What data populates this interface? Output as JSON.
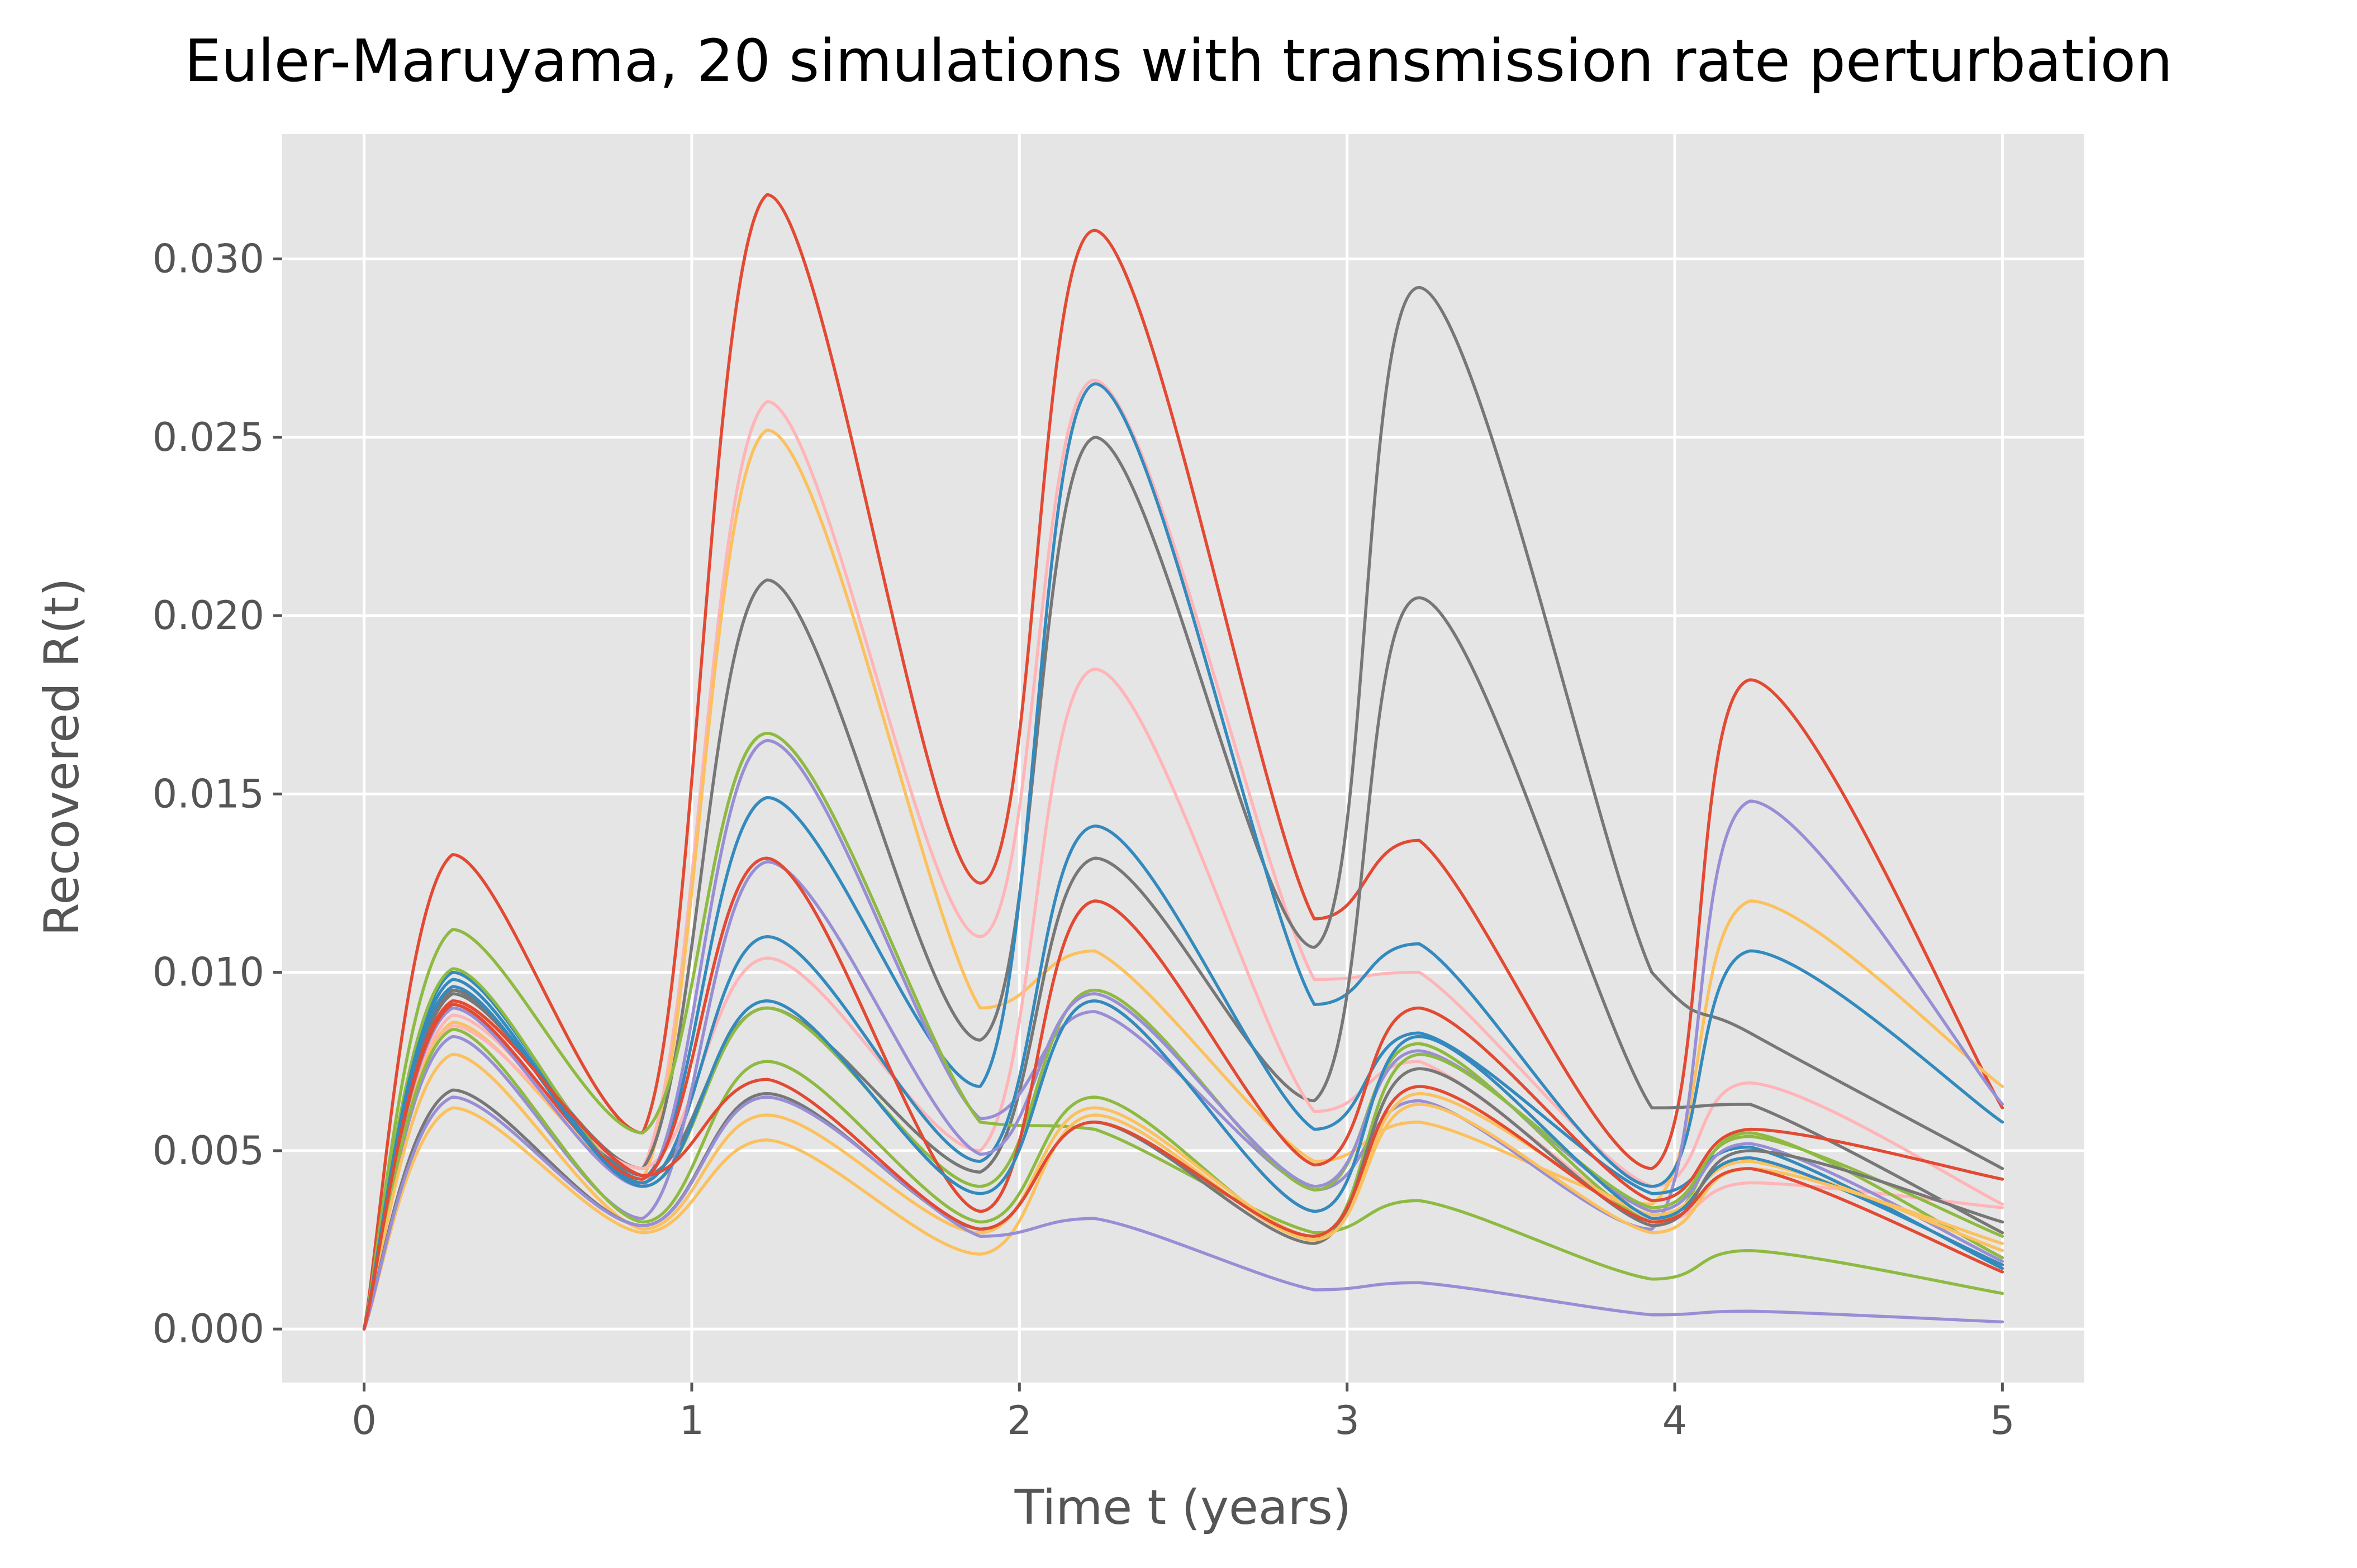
{
  "chart_data": {
    "type": "line",
    "title": "Euler-Maruyama, 20 simulations with transmission rate perturbation",
    "xlabel": "Time t (years)",
    "ylabel": "Recovered R(t)",
    "xlim": [
      -0.25,
      5.25
    ],
    "ylim": [
      -0.0015,
      0.0335
    ],
    "x_ticks": [
      0,
      1,
      2,
      3,
      4,
      5
    ],
    "x_tick_labels": [
      "0",
      "1",
      "2",
      "3",
      "4",
      "5"
    ],
    "y_ticks": [
      0.0,
      0.005,
      0.01,
      0.015,
      0.02,
      0.025,
      0.03
    ],
    "y_tick_labels": [
      "0.000",
      "0.005",
      "0.010",
      "0.015",
      "0.020",
      "0.025",
      "0.030"
    ],
    "grid": true,
    "legend": "none",
    "x_key_times": [
      0,
      0.27,
      0.85,
      1.23,
      1.88,
      2.23,
      2.9,
      3.22,
      3.93,
      4.23,
      5.0
    ],
    "series": [
      {
        "color": "#E24A33",
        "values": [
          0,
          0.0133,
          0.0055,
          0.0318,
          0.0125,
          0.0308,
          0.0115,
          0.0137,
          0.0045,
          0.0182,
          0.0062
        ]
      },
      {
        "color": "#FFB5B8",
        "values": [
          0,
          0.0088,
          0.0045,
          0.026,
          0.011,
          0.0266,
          0.0098,
          0.01,
          0.004,
          0.0069,
          0.0035
        ]
      },
      {
        "color": "#FBC15E",
        "values": [
          0,
          0.0086,
          0.0042,
          0.0252,
          0.009,
          0.0106,
          0.0047,
          0.0058,
          0.0035,
          0.012,
          0.0068
        ]
      },
      {
        "color": "#777777",
        "values": [
          0,
          0.0094,
          0.0045,
          0.021,
          0.0081,
          0.025,
          0.0107,
          0.0292,
          0.01,
          0.0083,
          0.0045
        ]
      },
      {
        "color": "#348ABD",
        "values": [
          0,
          0.01,
          0.0042,
          0.0149,
          0.0068,
          0.0265,
          0.0091,
          0.0108,
          0.004,
          0.0106,
          0.0058
        ]
      },
      {
        "color": "#777777",
        "values": [
          0,
          0.0095,
          0.0043,
          0.009,
          0.0044,
          0.0132,
          0.0064,
          0.0205,
          0.0062,
          0.0063,
          0.0027
        ]
      },
      {
        "color": "#FFB5B8",
        "values": [
          0,
          0.0085,
          0.0045,
          0.0104,
          0.005,
          0.0185,
          0.0061,
          0.0075,
          0.003,
          0.0041,
          0.0034
        ]
      },
      {
        "color": "#988ED5",
        "values": [
          0,
          0.009,
          0.004,
          0.0165,
          0.0059,
          0.0089,
          0.0039,
          0.0064,
          0.0028,
          0.0148,
          0.0063
        ]
      },
      {
        "color": "#8EBA42",
        "values": [
          0,
          0.0112,
          0.0055,
          0.0167,
          0.0058,
          0.0056,
          0.0027,
          0.0036,
          0.0014,
          0.0022,
          0.001
        ]
      },
      {
        "color": "#8EBA42",
        "values": [
          0,
          0.0101,
          0.004,
          0.009,
          0.004,
          0.0095,
          0.0039,
          0.008,
          0.003,
          0.0055,
          0.002
        ]
      },
      {
        "color": "#348ABD",
        "values": [
          0,
          0.0098,
          0.0041,
          0.011,
          0.0047,
          0.0141,
          0.0056,
          0.0083,
          0.0038,
          0.0051,
          0.0017
        ]
      },
      {
        "color": "#988ED5",
        "values": [
          0,
          0.0082,
          0.0031,
          0.0131,
          0.0049,
          0.0094,
          0.004,
          0.0078,
          0.0033,
          0.0052,
          0.0019
        ]
      },
      {
        "color": "#E24A33",
        "values": [
          0,
          0.0091,
          0.0042,
          0.0132,
          0.0033,
          0.012,
          0.0046,
          0.009,
          0.0036,
          0.0056,
          0.0042
        ]
      },
      {
        "color": "#8EBA42",
        "values": [
          0,
          0.0084,
          0.003,
          0.0075,
          0.003,
          0.0065,
          0.0025,
          0.0077,
          0.0034,
          0.0054,
          0.0026
        ]
      },
      {
        "color": "#FBC15E",
        "values": [
          0,
          0.0077,
          0.0028,
          0.006,
          0.0027,
          0.0062,
          0.0026,
          0.0066,
          0.0032,
          0.0047,
          0.0022
        ]
      },
      {
        "color": "#348ABD",
        "values": [
          0,
          0.0096,
          0.004,
          0.0092,
          0.0038,
          0.0092,
          0.0033,
          0.0082,
          0.0031,
          0.0048,
          0.0018
        ]
      },
      {
        "color": "#777777",
        "values": [
          0,
          0.0067,
          0.0029,
          0.0066,
          0.0028,
          0.0058,
          0.0024,
          0.0073,
          0.0029,
          0.005,
          0.003
        ]
      },
      {
        "color": "#FBC15E",
        "values": [
          0,
          0.0062,
          0.0027,
          0.0053,
          0.0021,
          0.006,
          0.0025,
          0.0063,
          0.0027,
          0.0045,
          0.0024
        ]
      },
      {
        "color": "#988ED5",
        "values": [
          0,
          0.0065,
          0.0029,
          0.0065,
          0.0026,
          0.0031,
          0.0011,
          0.0013,
          0.0004,
          0.0005,
          0.0002
        ]
      },
      {
        "color": "#E24A33",
        "values": [
          0,
          0.0092,
          0.0043,
          0.007,
          0.0028,
          0.0058,
          0.0026,
          0.0068,
          0.003,
          0.0045,
          0.0016
        ]
      }
    ]
  }
}
